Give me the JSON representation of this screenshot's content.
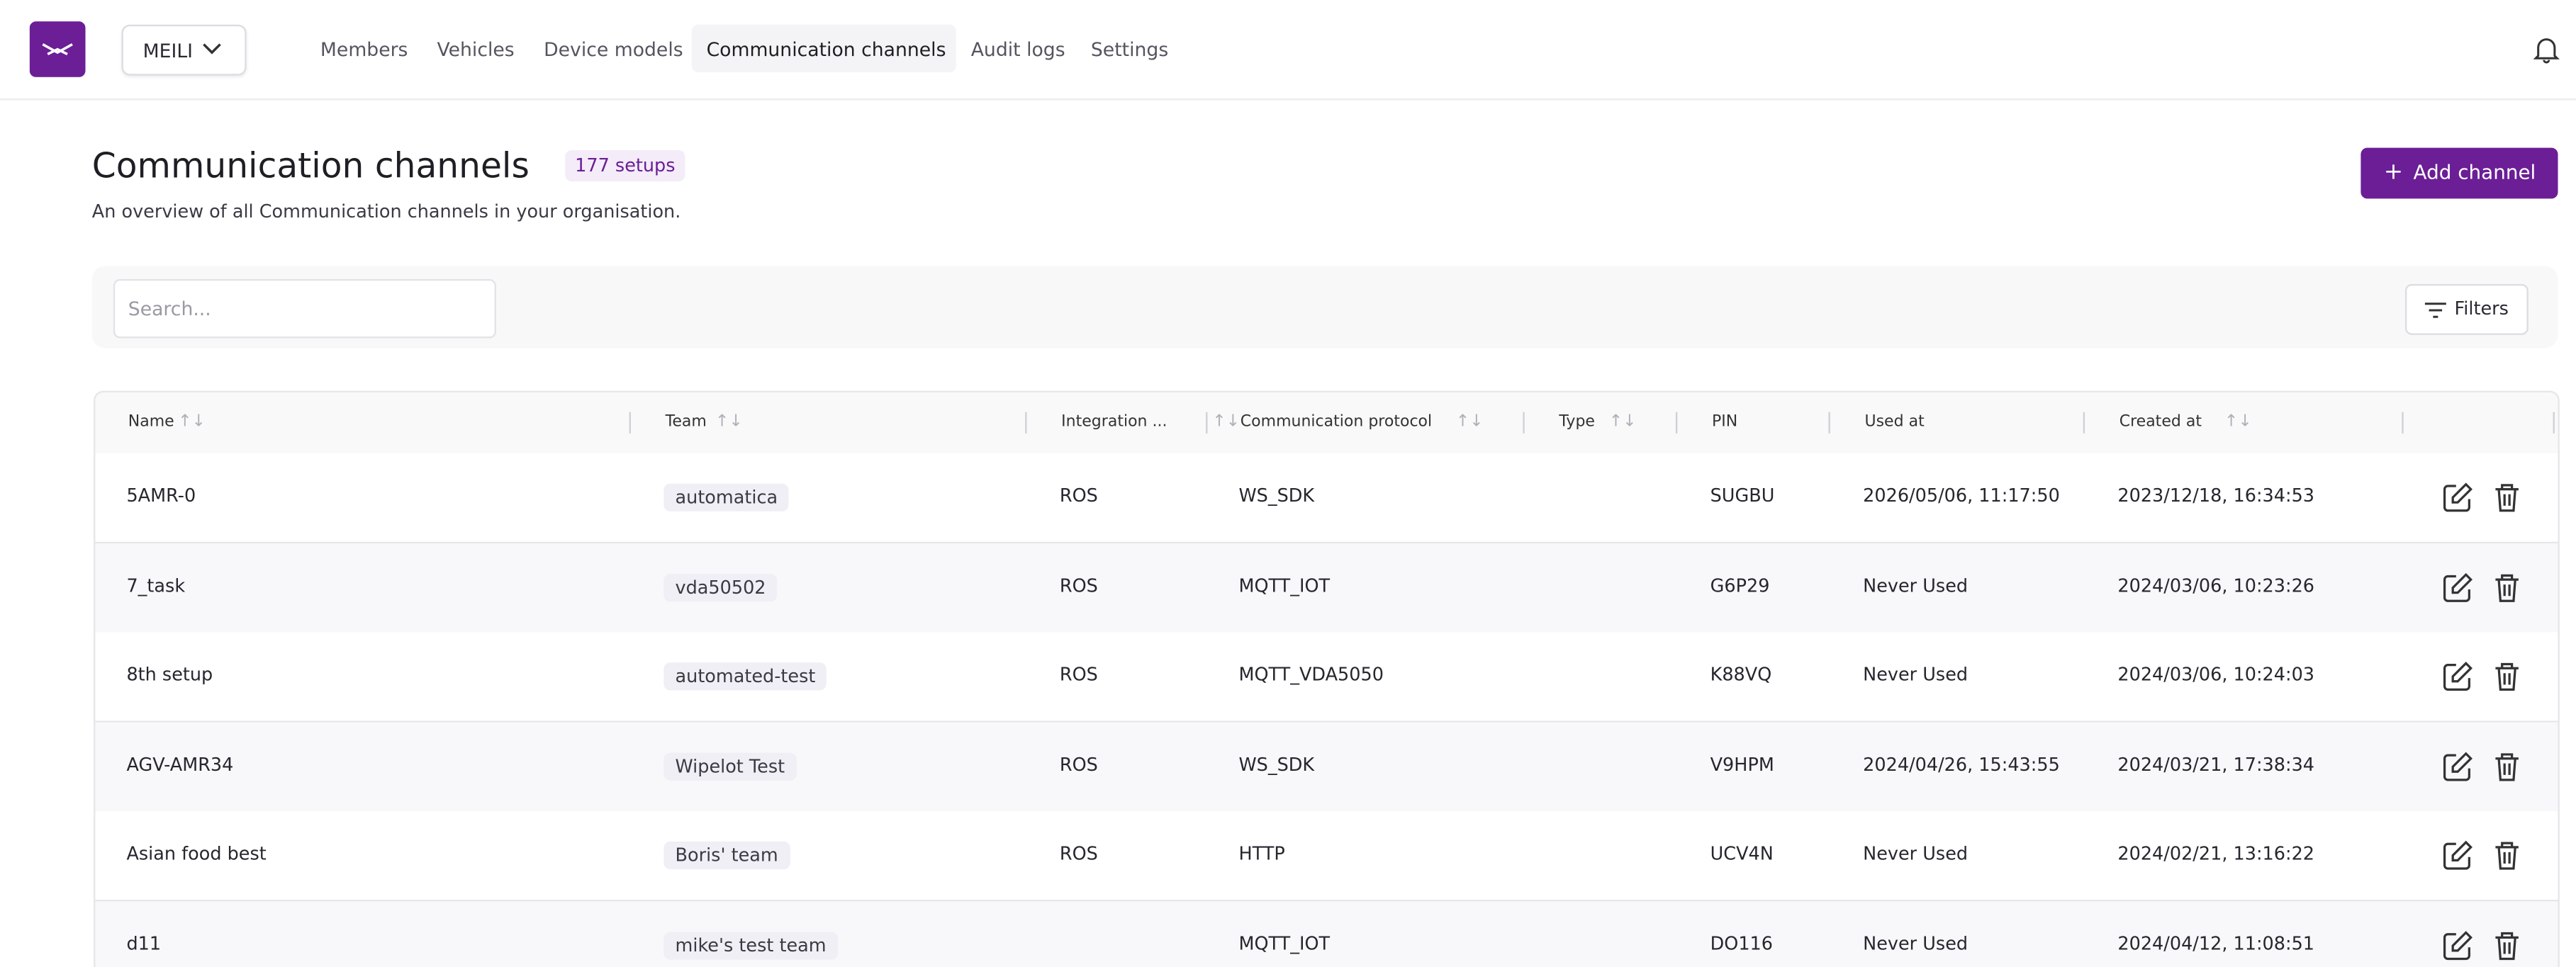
{
  "header": {
    "org": "MEILI",
    "nav": [
      "Members",
      "Vehicles",
      "Device models",
      "Communication channels",
      "Audit logs",
      "Settings"
    ],
    "active_nav": 3
  },
  "page": {
    "title": "Communication channels",
    "badge": "177 setups",
    "subtitle": "An overview of all Communication channels in your organisation.",
    "add_button": "Add channel",
    "search_placeholder": "Search...",
    "filters_button": "Filters"
  },
  "table": {
    "columns": [
      "Name",
      "Team",
      "Integration ...",
      "Communication protocol",
      "Type",
      "PIN",
      "Used at",
      "Created at"
    ],
    "rows": [
      [
        "5AMR-0",
        "automatica",
        "ROS",
        "WS_SDK",
        null,
        "SUGBU",
        "2026/05/06, 11:17:50",
        "2023/12/18, 16:34:53"
      ],
      [
        "7_task",
        "vda50502",
        "ROS",
        "MQTT_IOT",
        null,
        "G6P29",
        "Never Used",
        "2024/03/06, 10:23:26"
      ],
      [
        "8th setup",
        "automated-test",
        "ROS",
        "MQTT_VDA5050",
        null,
        "K88VQ",
        "Never Used",
        "2024/03/06, 10:24:03"
      ],
      [
        "AGV-AMR34",
        "Wipelot Test",
        "ROS",
        "WS_SDK",
        null,
        "V9HPM",
        "2024/04/26, 15:43:55",
        "2024/03/21, 17:38:34"
      ],
      [
        "Asian food best",
        "Boris' team",
        "ROS",
        "HTTP",
        null,
        "UCV4N",
        "Never Used",
        "2024/02/21, 13:16:22"
      ],
      [
        "d11",
        "mike's test team",
        null,
        "MQTT_IOT",
        null,
        "DO116",
        "Never Used",
        "2024/04/12, 11:08:51"
      ]
    ]
  }
}
